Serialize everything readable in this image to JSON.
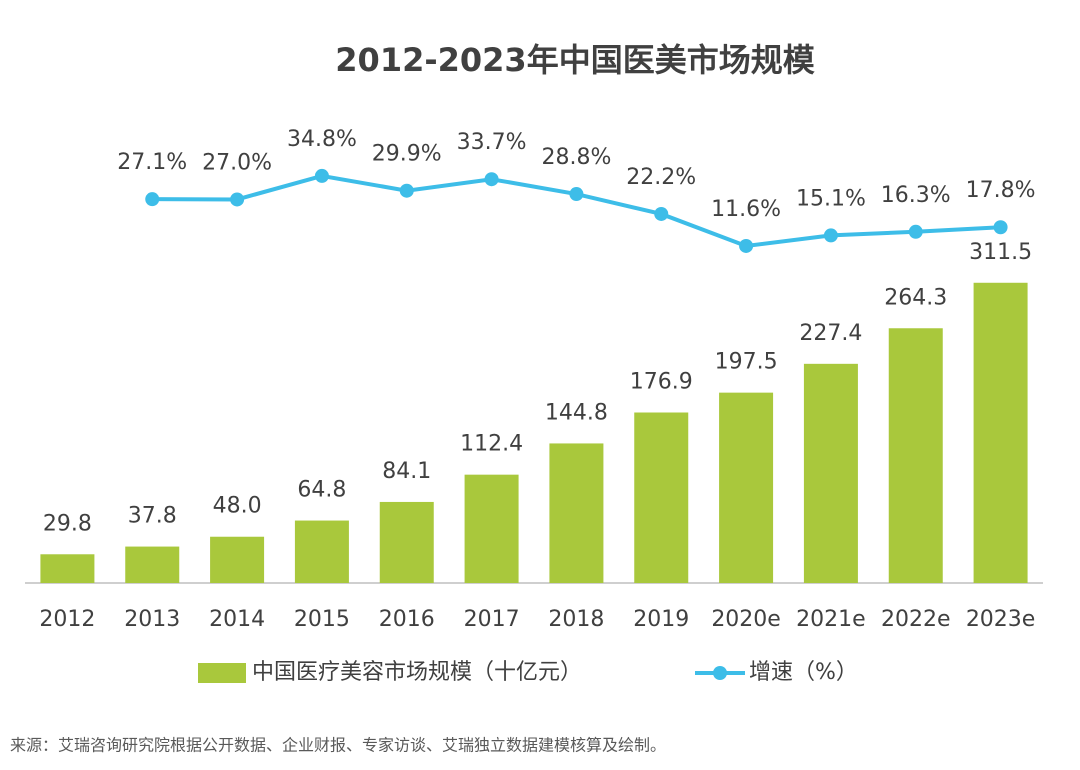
{
  "chart_data": {
    "type": "bar_line",
    "title": "2012-2023年中国医美市场规模",
    "categories": [
      "2012",
      "2013",
      "2014",
      "2015",
      "2016",
      "2017",
      "2018",
      "2019",
      "2020e",
      "2021e",
      "2022e",
      "2023e"
    ],
    "series": [
      {
        "name": "中国医疗美容市场规模（十亿元）",
        "color": "#a9c83c",
        "type": "bar",
        "values": [
          29.8,
          37.8,
          48.0,
          64.8,
          84.1,
          112.4,
          144.8,
          176.9,
          197.5,
          227.4,
          264.3,
          311.5
        ],
        "value_labels": [
          "29.8",
          "37.8",
          "48.0",
          "64.8",
          "84.1",
          "112.4",
          "144.8",
          "176.9",
          "197.5",
          "227.4",
          "264.3",
          "311.5"
        ]
      },
      {
        "name": "增速（%）",
        "color": "#3dbde8",
        "type": "line",
        "axis": "y2",
        "values": [
          null,
          27.1,
          27.0,
          34.8,
          29.9,
          33.7,
          28.8,
          22.2,
          11.6,
          15.1,
          16.3,
          17.8
        ],
        "value_labels": [
          null,
          "27.1%",
          "27.0%",
          "34.8%",
          "29.9%",
          "33.7%",
          "28.8%",
          "22.2%",
          "11.6%",
          "15.1%",
          "16.3%",
          "17.8%"
        ]
      }
    ],
    "ylim": [
      0,
      470
    ],
    "y2lim": [
      -100,
      50
    ],
    "source": "来源：艾瑞咨询研究院根据公开数据、企业财报、专家访谈、艾瑞独立数据建模核算及绘制。"
  }
}
